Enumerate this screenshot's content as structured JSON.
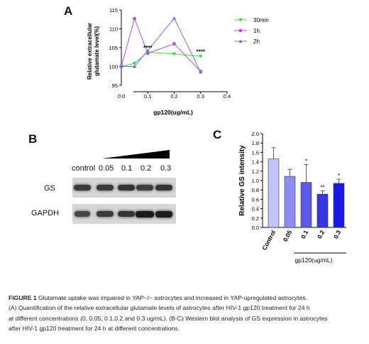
{
  "panels": {
    "a": "A",
    "b": "B",
    "c": "C"
  },
  "chart_data": [
    {
      "type": "line",
      "title": "",
      "xlabel": "gp120(ug/mL)",
      "ylabel_line1": "Relative extracellular",
      "ylabel_line2": "glutamate level(%)",
      "xlim": [
        0.0,
        0.4
      ],
      "ylim": [
        95,
        115
      ],
      "xticks": [
        "0.0",
        "0.1",
        "0.2",
        "0.3",
        "0.4"
      ],
      "yticks": [
        "95",
        "100",
        "105",
        "110",
        "115"
      ],
      "legend_position": "top-right",
      "x": [
        0.0,
        0.05,
        0.1,
        0.2,
        0.3
      ],
      "series": [
        {
          "name": "30min",
          "color": "#33dd33",
          "marker": "down-triangle",
          "values": [
            100.0,
            100.8,
            103.8,
            103.3,
            102.7
          ]
        },
        {
          "name": "1h",
          "color": "#b050d8",
          "marker": "circle",
          "values": [
            100.0,
            112.7,
            103.5,
            106.0,
            98.7
          ]
        },
        {
          "name": "2h",
          "color": "#7070ee",
          "marker": "up-triangle",
          "values": [
            100.0,
            100.0,
            104.2,
            112.8,
            98.5
          ]
        }
      ],
      "annotations": [
        {
          "text": "****",
          "x": 0.1,
          "y": 104.6
        },
        {
          "text": "****",
          "x": 0.3,
          "y": 103.6
        }
      ]
    },
    {
      "type": "bar",
      "title": "",
      "xlabel": "gp120(ug/mL)",
      "ylabel": "Relative GS intensity",
      "ylim": [
        0.0,
        2.0
      ],
      "yticks": [
        "0.0",
        "0.2",
        "0.4",
        "0.6",
        "0.8",
        "1.0",
        "1.2",
        "1.4",
        "1.6",
        "1.8",
        "2.0"
      ],
      "categories": [
        "Control",
        "0.05",
        "0.1",
        "0.2",
        "0.3"
      ],
      "values": [
        1.46,
        1.09,
        0.96,
        0.71,
        0.94
      ],
      "errors": [
        0.24,
        0.15,
        0.38,
        0.07,
        0.09
      ],
      "significance": [
        "",
        "",
        "*",
        "**",
        "*"
      ],
      "colors": [
        "#c3c3f7",
        "#8d8df2",
        "#5a5ae6",
        "#3535e0",
        "#1a1ae8"
      ]
    }
  ],
  "blot": {
    "concentrations": [
      "control",
      "0.05",
      "0.1",
      "0.2",
      "0.3"
    ],
    "rows": [
      {
        "label": "GS",
        "intensities": [
          0.55,
          0.55,
          0.62,
          0.52,
          0.6
        ]
      },
      {
        "label": "GAPDH",
        "intensities": [
          0.45,
          0.55,
          0.62,
          0.85,
          0.82
        ]
      }
    ]
  },
  "caption": {
    "label": "FIGURE 1",
    "line1": "Glutamate uptake was impaired in YAP−/− astrocytes and increased in YAP-upregulated astrocytes.",
    "line2": "(A) Quantification of the relative extracellular glutamate levels of astrocytes after HIV-1 gp120 treatment for 24 h",
    "line3": "at different concentrations (0, 0.05, 0.1,0.2 and 0.3 ug/mL). (B-C) Western blot analysis of GS expression in astrocytes",
    "line4": "after HIV-1 gp120 treatment for 24 h at different concentrations."
  }
}
